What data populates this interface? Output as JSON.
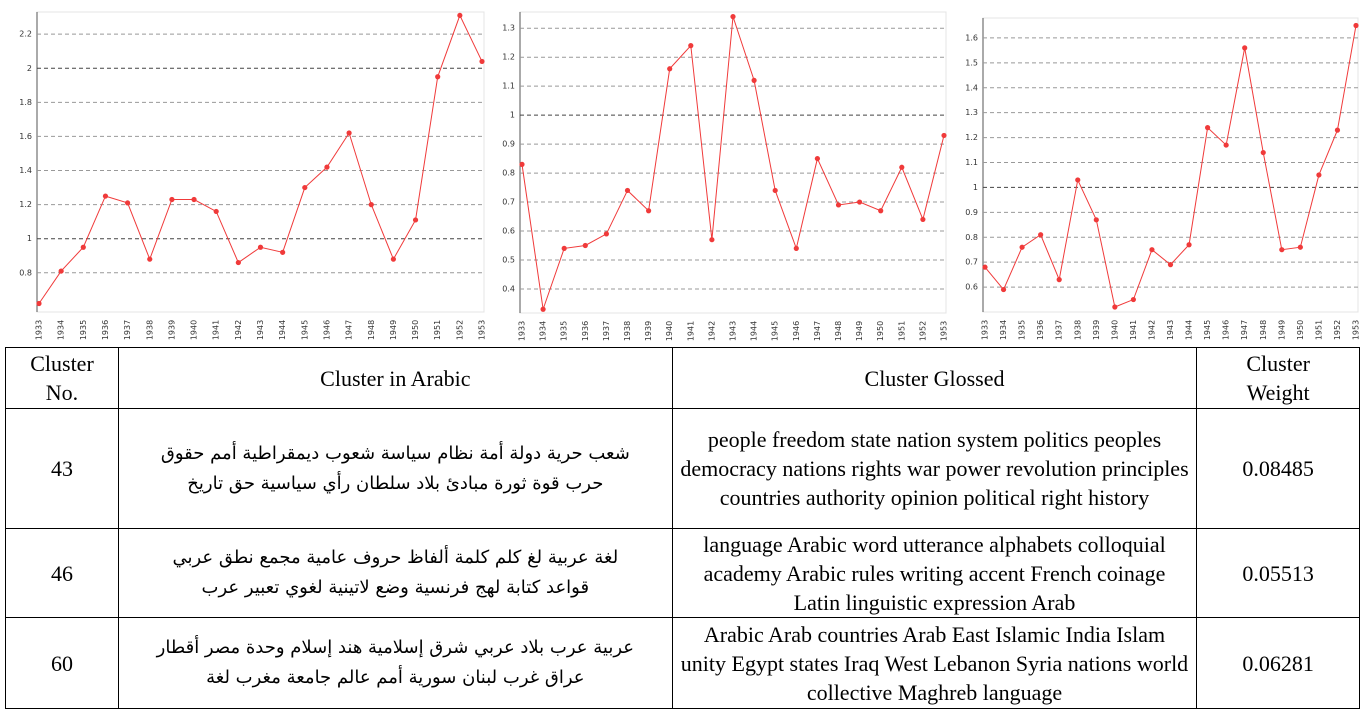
{
  "chart_data": [
    {
      "type": "line",
      "color": "#f03a3a",
      "x": [
        "1933",
        "1934",
        "1935",
        "1936",
        "1937",
        "1938",
        "1939",
        "1940",
        "1941",
        "1942",
        "1943",
        "1944",
        "1945",
        "1946",
        "1947",
        "1948",
        "1949",
        "1950",
        "1951",
        "1952",
        "1953"
      ],
      "values": [
        0.62,
        0.81,
        0.95,
        1.25,
        1.21,
        0.88,
        1.23,
        1.23,
        1.16,
        0.86,
        0.95,
        0.92,
        1.3,
        1.42,
        1.62,
        1.2,
        0.88,
        1.11,
        1.95,
        2.31,
        2.04
      ],
      "ylim": [
        0.57,
        2.33
      ],
      "yticks": [
        0.8,
        1,
        1.2,
        1.4,
        1.6,
        1.8,
        2,
        2.2
      ],
      "grid": true
    },
    {
      "type": "line",
      "color": "#f03a3a",
      "x": [
        "1933",
        "1934",
        "1935",
        "1936",
        "1937",
        "1938",
        "1939",
        "1940",
        "1941",
        "1942",
        "1943",
        "1944",
        "1945",
        "1946",
        "1947",
        "1948",
        "1949",
        "1950",
        "1951",
        "1952",
        "1953"
      ],
      "values": [
        0.83,
        0.33,
        0.54,
        0.55,
        0.59,
        0.74,
        0.67,
        1.16,
        1.24,
        0.57,
        1.34,
        1.12,
        0.74,
        0.54,
        0.85,
        0.69,
        0.7,
        0.67,
        0.82,
        0.64,
        0.93
      ],
      "ylim": [
        0.317,
        1.356
      ],
      "yticks": [
        0.4,
        0.5,
        0.6,
        0.7,
        0.8,
        0.9,
        1,
        1.1,
        1.2,
        1.3
      ],
      "grid": true
    },
    {
      "type": "line",
      "color": "#f03a3a",
      "x": [
        "1933",
        "1934",
        "1935",
        "1936",
        "1937",
        "1938",
        "1939",
        "1940",
        "1941",
        "1942",
        "1943",
        "1944",
        "1945",
        "1946",
        "1947",
        "1948",
        "1949",
        "1950",
        "1951",
        "1952",
        "1953"
      ],
      "values": [
        0.68,
        0.59,
        0.76,
        0.81,
        0.63,
        1.03,
        0.87,
        0.52,
        0.55,
        0.75,
        0.69,
        0.77,
        1.24,
        1.17,
        1.56,
        1.14,
        0.75,
        0.76,
        1.05,
        1.23,
        1.65
      ],
      "ylim": [
        0.5,
        1.68
      ],
      "yticks": [
        0.6,
        0.7,
        0.8,
        0.9,
        1,
        1.1,
        1.2,
        1.3,
        1.4,
        1.5,
        1.6
      ],
      "grid": true
    }
  ],
  "table": {
    "header": [
      "Cluster No.",
      "Cluster in Arabic",
      "Cluster Glossed",
      "Cluster Weight"
    ],
    "rows": [
      [
        43,
        "شعب حرية دولة أمة نظام سياسة شعوب ديمقراطية أمم حقوق حرب قوة ثورة مبادئ بلاد سلطان رأي سياسية حق تاريخ",
        "people freedom state nation system politics peoples democracy nations rights war power revolution principles countries authority opinion political right history",
        0.08485
      ],
      [
        46,
        "لغة عربية لغ كلم كلمة ألفاظ حروف عامية مجمع نطق عربي قواعد كتابة لهج فرنسية وضع لاتينية لغوي تعبير عرب",
        "language Arabic word utterance alphabets colloquial academy Arabic rules writing accent French coinage Latin linguistic expression Arab",
        0.05513
      ],
      [
        60,
        "عربية عرب بلاد عربي شرق إسلامية هند إسلام وحدة مصر أقطار عراق غرب لبنان سورية أمم عالم جامعة مغرب لغة",
        "Arabic Arab countries Arab East Islamic India Islam unity Egypt states Iraq West Lebanon Syria nations world collective Maghreb language",
        0.06281
      ]
    ]
  }
}
